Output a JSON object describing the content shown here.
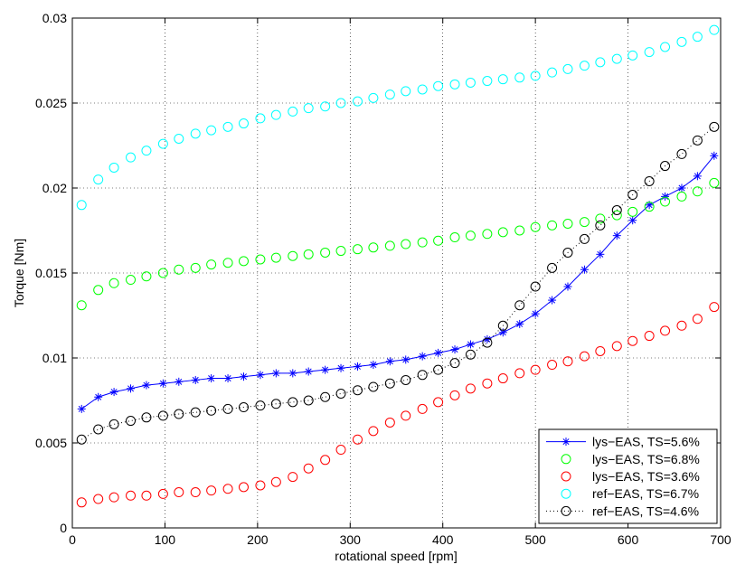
{
  "chart_data": {
    "type": "scatter",
    "title": "",
    "xlabel": "rotational speed [rpm]",
    "ylabel": "Torque [Nm]",
    "xlim": [
      0,
      700
    ],
    "ylim": [
      0,
      0.03
    ],
    "xticks": [
      0,
      100,
      200,
      300,
      400,
      500,
      600,
      700
    ],
    "xtick_labels": [
      "0",
      "100",
      "200",
      "300",
      "400",
      "500",
      "600",
      "700"
    ],
    "yticks": [
      0,
      0.005,
      0.01,
      0.015,
      0.02,
      0.025,
      0.03
    ],
    "ytick_labels": [
      "0",
      "0.005",
      "0.01",
      "0.015",
      "0.02",
      "0.025",
      "0.03"
    ],
    "grid": true,
    "legend_position": "bottom-right",
    "x": [
      10,
      28,
      45,
      63,
      80,
      98,
      115,
      133,
      150,
      168,
      185,
      203,
      220,
      238,
      255,
      273,
      290,
      308,
      325,
      343,
      360,
      378,
      395,
      413,
      430,
      448,
      465,
      483,
      500,
      518,
      535,
      553,
      570,
      588,
      605,
      623,
      640,
      658,
      675,
      693
    ],
    "series": [
      {
        "name": "lys−EAS, TS=5.6%",
        "color": "#0000ff",
        "marker": "asterisk",
        "line": "solid",
        "values": [
          0.007,
          0.0077,
          0.008,
          0.0082,
          0.0084,
          0.0085,
          0.0086,
          0.0087,
          0.0088,
          0.0088,
          0.0089,
          0.009,
          0.0091,
          0.0091,
          0.0092,
          0.0093,
          0.0094,
          0.0095,
          0.0096,
          0.0098,
          0.0099,
          0.0101,
          0.0103,
          0.0105,
          0.0108,
          0.0111,
          0.0115,
          0.012,
          0.0126,
          0.0134,
          0.0142,
          0.0152,
          0.0161,
          0.0172,
          0.0181,
          0.019,
          0.0195,
          0.02,
          0.0207,
          0.0219
        ]
      },
      {
        "name": "lys−EAS, TS=6.8%",
        "color": "#00ff00",
        "marker": "circle",
        "line": "none",
        "values": [
          0.0131,
          0.014,
          0.0144,
          0.0146,
          0.0148,
          0.015,
          0.0152,
          0.0153,
          0.0155,
          0.0156,
          0.0157,
          0.0158,
          0.0159,
          0.016,
          0.0161,
          0.0162,
          0.0163,
          0.0164,
          0.0165,
          0.0166,
          0.0167,
          0.0168,
          0.0169,
          0.0171,
          0.0172,
          0.0173,
          0.0174,
          0.0175,
          0.0177,
          0.0178,
          0.0179,
          0.018,
          0.0182,
          0.0184,
          0.0186,
          0.0189,
          0.0192,
          0.0195,
          0.0198,
          0.0203
        ]
      },
      {
        "name": "lys−EAS, TS=3.6%",
        "color": "#ff0000",
        "marker": "circle",
        "line": "none",
        "values": [
          0.0015,
          0.0017,
          0.0018,
          0.0019,
          0.0019,
          0.002,
          0.0021,
          0.0021,
          0.0022,
          0.0023,
          0.0024,
          0.0025,
          0.0027,
          0.003,
          0.0035,
          0.004,
          0.0046,
          0.0052,
          0.0057,
          0.0062,
          0.0066,
          0.007,
          0.0074,
          0.0078,
          0.0082,
          0.0085,
          0.0088,
          0.0091,
          0.0093,
          0.0096,
          0.0098,
          0.0101,
          0.0104,
          0.0107,
          0.011,
          0.0113,
          0.0116,
          0.0119,
          0.0123,
          0.013
        ]
      },
      {
        "name": "ref−EAS, TS=6.7%",
        "color": "#00ffff",
        "marker": "circle",
        "line": "none",
        "values": [
          0.019,
          0.0205,
          0.0212,
          0.0218,
          0.0222,
          0.0226,
          0.0229,
          0.0232,
          0.0234,
          0.0236,
          0.0238,
          0.0241,
          0.0243,
          0.0245,
          0.0247,
          0.0248,
          0.025,
          0.0251,
          0.0253,
          0.0255,
          0.0257,
          0.0258,
          0.026,
          0.0261,
          0.0262,
          0.0263,
          0.0264,
          0.0265,
          0.0266,
          0.0268,
          0.027,
          0.0272,
          0.0274,
          0.0276,
          0.0278,
          0.028,
          0.0283,
          0.0286,
          0.0289,
          0.0293
        ]
      },
      {
        "name": "ref−EAS, TS=4.6%",
        "color": "#000000",
        "marker": "circle",
        "line": "dotted",
        "values": [
          0.0052,
          0.0058,
          0.0061,
          0.0063,
          0.0065,
          0.0066,
          0.0067,
          0.0068,
          0.0069,
          0.007,
          0.0071,
          0.0072,
          0.0073,
          0.0074,
          0.0075,
          0.0077,
          0.0079,
          0.0081,
          0.0083,
          0.0085,
          0.0087,
          0.009,
          0.0093,
          0.0097,
          0.0102,
          0.0109,
          0.0119,
          0.0131,
          0.0142,
          0.0153,
          0.0162,
          0.017,
          0.0178,
          0.0187,
          0.0196,
          0.0204,
          0.0213,
          0.022,
          0.0228,
          0.0236
        ]
      }
    ]
  }
}
